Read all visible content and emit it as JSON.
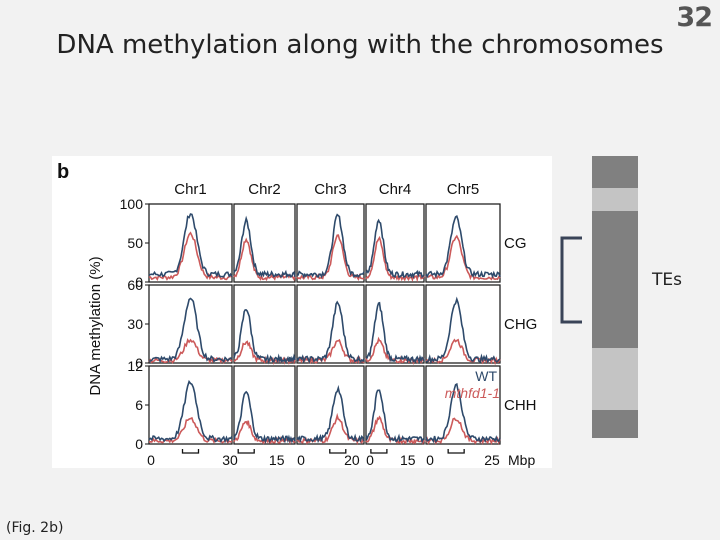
{
  "slide": {
    "title": "DNA methylation along with the chromosomes",
    "number": "32",
    "caption": "(Fig. 2b)",
    "te_label": "TEs"
  },
  "colors": {
    "wt": "#2e4a6b",
    "mutant": "#cc5a5a",
    "te_dark": "#808080",
    "te_light": "#c4c4c4"
  },
  "te_track": [
    {
      "shade": "dark",
      "frac": 0.115
    },
    {
      "shade": "light",
      "frac": 0.08
    },
    {
      "shade": "dark",
      "frac": 0.13
    },
    {
      "shade": "dark",
      "frac": 0.175
    },
    {
      "shade": "dark",
      "frac": 0.18
    },
    {
      "shade": "light",
      "frac": 0.22
    },
    {
      "shade": "dark",
      "frac": 0.1
    }
  ],
  "chart_data": {
    "type": "line",
    "panel_label": "b",
    "ylabel": "DNA methylation (%)",
    "xunit": "Mbp",
    "chromosomes": [
      {
        "name": "Chr1",
        "length": 30,
        "xticks": [
          "0",
          "30"
        ]
      },
      {
        "name": "Chr2",
        "length": 20,
        "xticks": [
          "15"
        ]
      },
      {
        "name": "Chr3",
        "length": 23,
        "xticks": [
          "0",
          "20"
        ]
      },
      {
        "name": "Chr4",
        "length": 18,
        "xticks": [
          "0",
          "15"
        ]
      },
      {
        "name": "Chr5",
        "length": 27,
        "xticks": [
          "0",
          "25"
        ]
      }
    ],
    "contexts": [
      {
        "name": "CG",
        "ylim": [
          0,
          100
        ],
        "yticks": [
          "100",
          "50",
          "0"
        ],
        "baseline_wt": 10,
        "baseline_mut": 6,
        "peak_wt": [
          88,
          78,
          85,
          80,
          82
        ],
        "peak_mut": [
          62,
          55,
          60,
          55,
          58
        ]
      },
      {
        "name": "CHG",
        "ylim": [
          0,
          60
        ],
        "yticks": [
          "60",
          "30",
          "0"
        ],
        "baseline_wt": 3,
        "baseline_mut": 2,
        "peak_wt": [
          50,
          42,
          46,
          45,
          48
        ],
        "peak_mut": [
          18,
          16,
          17,
          17,
          18
        ]
      },
      {
        "name": "CHH",
        "ylim": [
          0,
          12
        ],
        "yticks": [
          "12",
          "6",
          "0"
        ],
        "baseline_wt": 0.8,
        "baseline_mut": 0.5,
        "peak_wt": [
          9.5,
          8,
          8.5,
          8.5,
          9
        ],
        "peak_mut": [
          4,
          3.5,
          4,
          4,
          4
        ]
      }
    ],
    "centromere_pos": [
      15,
      4,
      14,
      4,
      11
    ],
    "legend": [
      {
        "name": "WT",
        "color": "#2e4a6b"
      },
      {
        "name": "mthfd1-1",
        "color": "#cc5a5a"
      }
    ]
  }
}
